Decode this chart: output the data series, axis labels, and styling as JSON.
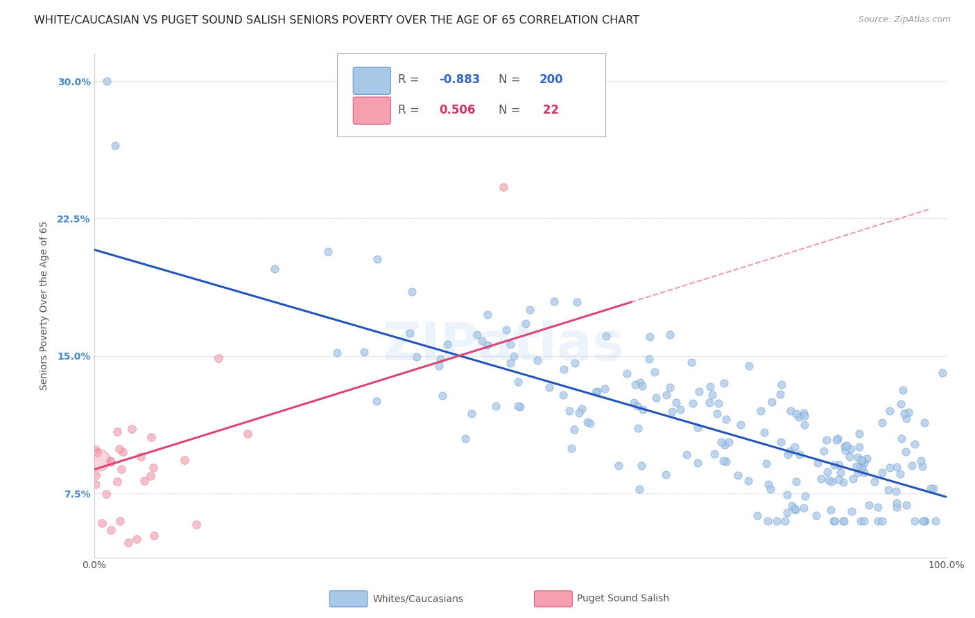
{
  "title": "WHITE/CAUCASIAN VS PUGET SOUND SALISH SENIORS POVERTY OVER THE AGE OF 65 CORRELATION CHART",
  "source": "Source: ZipAtlas.com",
  "ylabel": "Seniors Poverty Over the Age of 65",
  "xlim": [
    0,
    1.0
  ],
  "ylim": [
    0.04,
    0.315
  ],
  "yticks": [
    0.075,
    0.15,
    0.225,
    0.3
  ],
  "ytick_labels": [
    "7.5%",
    "15.0%",
    "22.5%",
    "30.0%"
  ],
  "xticks": [
    0.0,
    0.25,
    0.5,
    0.75,
    1.0
  ],
  "xtick_labels": [
    "0.0%",
    "",
    "",
    "",
    "100.0%"
  ],
  "blue_color": "#a8c8e8",
  "blue_edge": "#6699cc",
  "pink_color": "#f4a0b0",
  "pink_edge": "#e06080",
  "blue_R": -0.883,
  "blue_N": 200,
  "pink_R": 0.506,
  "pink_N": 22,
  "watermark": "ZIPatlas",
  "background_color": "#ffffff",
  "grid_color": "#e0e0e0",
  "title_fontsize": 11.5,
  "axis_label_fontsize": 10,
  "tick_fontsize": 10,
  "blue_line_color": "#2255bb",
  "pink_line_color": "#dd4477",
  "blue_line_intercept": 0.208,
  "blue_line_slope": -0.135,
  "pink_line_intercept": 0.088,
  "pink_line_slope": 0.145
}
